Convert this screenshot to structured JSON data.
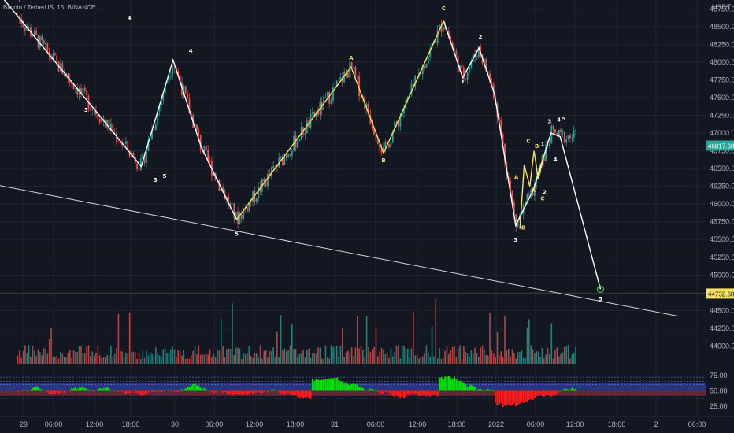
{
  "header": {
    "symbol_title": "Bitcoin / TetherUS, 15, BINANCE",
    "currency": "USDT"
  },
  "colors": {
    "background": "#131722",
    "grid": "#1f2430",
    "up_candle": "#26a69a",
    "down_candle": "#ef5350",
    "wave_white": "#ffffff",
    "wave_yellow": "#f7e35c",
    "horizontal_line": "#f7e35c",
    "last_price_bg": "#26a69a",
    "level_price_bg": "#f7e35c",
    "osc_green": "#00e600",
    "osc_red": "#ff1a1a",
    "osc_band_blue": "#2a3a8a",
    "osc_band_red": "#6a2a3a"
  },
  "chart_data": {
    "type": "candlestick",
    "title": "Bitcoin / TetherUS, 15, BINANCE",
    "x_ticks": [
      "29",
      "06:00",
      "12:00",
      "18:00",
      "30",
      "06:00",
      "12:00",
      "18:00",
      "31",
      "06:00",
      "12:00",
      "18:00",
      "2022",
      "06:00",
      "12:00",
      "18:00",
      "2",
      "06:00"
    ],
    "y_ticks": [
      44000,
      44250,
      44500,
      44750,
      45000,
      45250,
      45500,
      45750,
      46000,
      46250,
      46500,
      46750,
      47000,
      47250,
      47500,
      47750,
      48000,
      48250,
      48500,
      48750
    ],
    "ylim": [
      43750,
      48875
    ],
    "last_price": "46817.60",
    "level_price": "44732.68",
    "level_value": 44732.68,
    "oscillator": {
      "y_ticks": [
        "75.00",
        "50.00",
        "25.00"
      ],
      "ylim": [
        10,
        90
      ]
    },
    "white_wave_points": [
      {
        "t": 0.0,
        "p": 48950
      },
      {
        "t": 0.2,
        "p": 46530
      },
      {
        "t": 0.245,
        "p": 48030
      },
      {
        "t": 0.285,
        "p": 46800
      },
      {
        "t": 0.335,
        "p": 45780
      }
    ],
    "yellow_wave_points": [
      {
        "t": 0.335,
        "p": 45780
      },
      {
        "t": 0.497,
        "p": 47930
      },
      {
        "t": 0.543,
        "p": 46720
      },
      {
        "t": 0.628,
        "p": 48580
      }
    ],
    "white_wave2_points": [
      {
        "t": 0.628,
        "p": 48580
      },
      {
        "t": 0.655,
        "p": 47780
      },
      {
        "t": 0.678,
        "p": 48200
      },
      {
        "t": 0.7,
        "p": 47550
      },
      {
        "t": 0.73,
        "p": 45700
      },
      {
        "t": 0.755,
        "p": 46200
      },
      {
        "t": 0.78,
        "p": 47000
      },
      {
        "t": 0.793,
        "p": 46950
      },
      {
        "t": 0.85,
        "p": 44800
      }
    ],
    "trend_line": [
      {
        "t": 0.0,
        "p": 46260
      },
      {
        "t": 0.96,
        "p": 44420
      }
    ],
    "wave_labels": [
      {
        "text": "1",
        "t": 0.028,
        "p": 48840,
        "color": "white"
      },
      {
        "text": "4",
        "t": 0.183,
        "p": 48600,
        "color": "white"
      },
      {
        "text": "3",
        "t": 0.122,
        "p": 47300,
        "color": "white"
      },
      {
        "text": "4",
        "t": 0.27,
        "p": 48130,
        "color": "white"
      },
      {
        "text": "3",
        "t": 0.22,
        "p": 46310,
        "color": "white"
      },
      {
        "text": "5",
        "t": 0.233,
        "p": 46370,
        "color": "white"
      },
      {
        "text": "5",
        "t": 0.335,
        "p": 45550,
        "color": "white"
      },
      {
        "text": "A",
        "t": 0.497,
        "p": 48030,
        "color": "yellow"
      },
      {
        "text": "B",
        "t": 0.543,
        "p": 46590,
        "color": "yellow"
      },
      {
        "text": "C",
        "t": 0.628,
        "p": 48730,
        "color": "yellow"
      },
      {
        "text": "2",
        "t": 0.68,
        "p": 48330,
        "color": "white"
      },
      {
        "text": "1",
        "t": 0.655,
        "p": 47700,
        "color": "white"
      },
      {
        "text": "A",
        "t": 0.731,
        "p": 46350,
        "color": "yellow"
      },
      {
        "text": "B",
        "t": 0.741,
        "p": 45640,
        "color": "yellow"
      },
      {
        "text": "3",
        "t": 0.73,
        "p": 45470,
        "color": "white"
      },
      {
        "text": "C",
        "t": 0.748,
        "p": 46860,
        "color": "yellow"
      },
      {
        "text": "B",
        "t": 0.76,
        "p": 46790,
        "color": "yellow"
      },
      {
        "text": "1",
        "t": 0.768,
        "p": 46820,
        "color": "white"
      },
      {
        "text": "A",
        "t": 0.755,
        "p": 46170,
        "color": "yellow"
      },
      {
        "text": "2",
        "t": 0.771,
        "p": 46140,
        "color": "white"
      },
      {
        "text": "C",
        "t": 0.768,
        "p": 46050,
        "color": "yellow"
      },
      {
        "text": "3",
        "t": 0.778,
        "p": 47140,
        "color": "white"
      },
      {
        "text": "4",
        "t": 0.791,
        "p": 47160,
        "color": "white"
      },
      {
        "text": "5",
        "t": 0.798,
        "p": 47180,
        "color": "white"
      },
      {
        "text": "4",
        "t": 0.786,
        "p": 46600,
        "color": "white"
      },
      {
        "text": "5",
        "t": 0.85,
        "p": 44640,
        "color": "white"
      }
    ]
  }
}
